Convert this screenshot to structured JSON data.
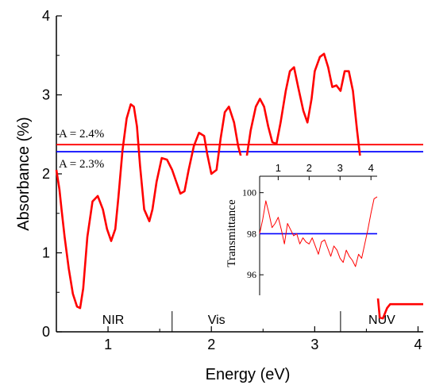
{
  "chart_data": [
    {
      "type": "line",
      "xlabel": "Energy (eV)",
      "ylabel": "Absorbance (%)",
      "xlim": [
        0.5,
        4.05
      ],
      "ylim": [
        0,
        4
      ],
      "xticks": [
        "1",
        "2",
        "3",
        "4"
      ],
      "xtick_values": [
        1,
        2,
        3,
        4
      ],
      "yticks": [
        "0",
        "1",
        "2",
        "3",
        "4"
      ],
      "ytick_values": [
        0,
        1,
        2,
        3,
        4
      ],
      "grid": false,
      "series": [
        {
          "color": "#ff0000",
          "x": [
            0.5,
            0.53,
            0.55,
            0.58,
            0.62,
            0.66,
            0.7,
            0.73,
            0.76,
            0.8,
            0.85,
            0.9,
            0.95,
            0.99,
            1.03,
            1.07,
            1.1,
            1.14,
            1.18,
            1.22,
            1.25,
            1.28,
            1.31,
            1.35,
            1.4,
            1.43,
            1.47,
            1.52,
            1.57,
            1.62,
            1.66,
            1.7,
            1.74,
            1.78,
            1.83,
            1.88,
            1.93,
            1.96,
            2.0,
            2.05,
            2.09,
            2.13,
            2.17,
            2.22,
            2.26,
            2.3,
            2.34,
            2.38,
            2.43,
            2.47,
            2.51,
            2.55,
            2.59,
            2.63,
            2.67,
            2.72,
            2.76,
            2.8,
            2.84,
            2.89,
            2.93,
            2.97,
            3.0,
            3.05,
            3.09,
            3.13,
            3.17,
            3.21,
            3.25,
            3.29,
            3.33,
            3.37,
            3.41,
            3.45,
            3.47,
            3.5,
            3.53,
            3.56,
            3.6,
            3.63,
            3.66,
            3.7,
            3.73,
            3.77,
            3.8,
            3.84,
            3.88,
            3.92,
            3.96,
            4.0,
            4.05
          ],
          "y": [
            2.05,
            1.8,
            1.55,
            1.2,
            0.8,
            0.48,
            0.32,
            0.3,
            0.55,
            1.2,
            1.65,
            1.72,
            1.55,
            1.3,
            1.15,
            1.3,
            1.7,
            2.3,
            2.7,
            2.88,
            2.85,
            2.6,
            2.1,
            1.55,
            1.4,
            1.55,
            1.9,
            2.2,
            2.18,
            2.05,
            1.9,
            1.75,
            1.78,
            2.05,
            2.35,
            2.52,
            2.48,
            2.25,
            2.0,
            2.05,
            2.45,
            2.78,
            2.85,
            2.65,
            2.35,
            2.15,
            2.2,
            2.55,
            2.85,
            2.95,
            2.85,
            2.6,
            2.4,
            2.38,
            2.65,
            3.05,
            3.3,
            3.35,
            3.1,
            2.8,
            2.65,
            2.95,
            3.3,
            3.48,
            3.52,
            3.35,
            3.1,
            3.12,
            3.05,
            3.3,
            3.3,
            3.05,
            2.55,
            2.1,
            1.8,
            1.45,
            1.2,
            1.08,
            0.6,
            0.18,
            0.17,
            0.3,
            0.35,
            0.35,
            0.35,
            0.35,
            0.35,
            0.35,
            0.35,
            0.35,
            0.35
          ]
        }
      ],
      "reference_lines": [
        {
          "label": "A = 2.4%",
          "y": 2.37,
          "color": "#ff0000"
        },
        {
          "label": "A = 2.3%",
          "y": 2.28,
          "color": "#0000ff"
        }
      ],
      "annotations": [
        {
          "label": "NIR",
          "x": 1.05
        },
        {
          "label": "Vis",
          "x": 2.05
        },
        {
          "label": "NUV",
          "x": 3.65
        }
      ],
      "region_dividers": [
        1.62,
        3.25
      ]
    },
    {
      "type": "line",
      "ylabel": "Transmittance",
      "xlim": [
        0.4,
        4.2
      ],
      "ylim": [
        95,
        100.8
      ],
      "xticks": [
        "1",
        "2",
        "3",
        "4"
      ],
      "xtick_values": [
        1,
        2,
        3,
        4
      ],
      "yticks": [
        "96",
        "98",
        "100"
      ],
      "ytick_values": [
        96,
        98,
        100
      ],
      "series": [
        {
          "color": "#ff0000",
          "x": [
            0.4,
            0.5,
            0.6,
            0.7,
            0.8,
            0.9,
            1.0,
            1.1,
            1.2,
            1.3,
            1.4,
            1.5,
            1.6,
            1.7,
            1.8,
            1.9,
            2.0,
            2.1,
            2.2,
            2.3,
            2.4,
            2.5,
            2.6,
            2.7,
            2.8,
            2.9,
            3.0,
            3.1,
            3.2,
            3.3,
            3.4,
            3.5,
            3.6,
            3.7,
            3.8,
            3.9,
            4.0,
            4.1,
            4.2
          ],
          "y": [
            98.0,
            98.7,
            99.6,
            99.0,
            98.3,
            98.5,
            98.8,
            98.2,
            97.5,
            98.5,
            98.2,
            97.9,
            98.0,
            97.5,
            97.8,
            97.6,
            97.5,
            97.8,
            97.4,
            97.0,
            97.6,
            97.7,
            97.3,
            96.9,
            97.4,
            97.2,
            96.8,
            96.6,
            97.2,
            96.9,
            96.7,
            96.4,
            97.0,
            96.8,
            97.5,
            98.2,
            99.0,
            99.7,
            99.8
          ]
        }
      ],
      "reference_lines": [
        {
          "y": 98.0,
          "color": "#0000ff"
        }
      ]
    }
  ]
}
